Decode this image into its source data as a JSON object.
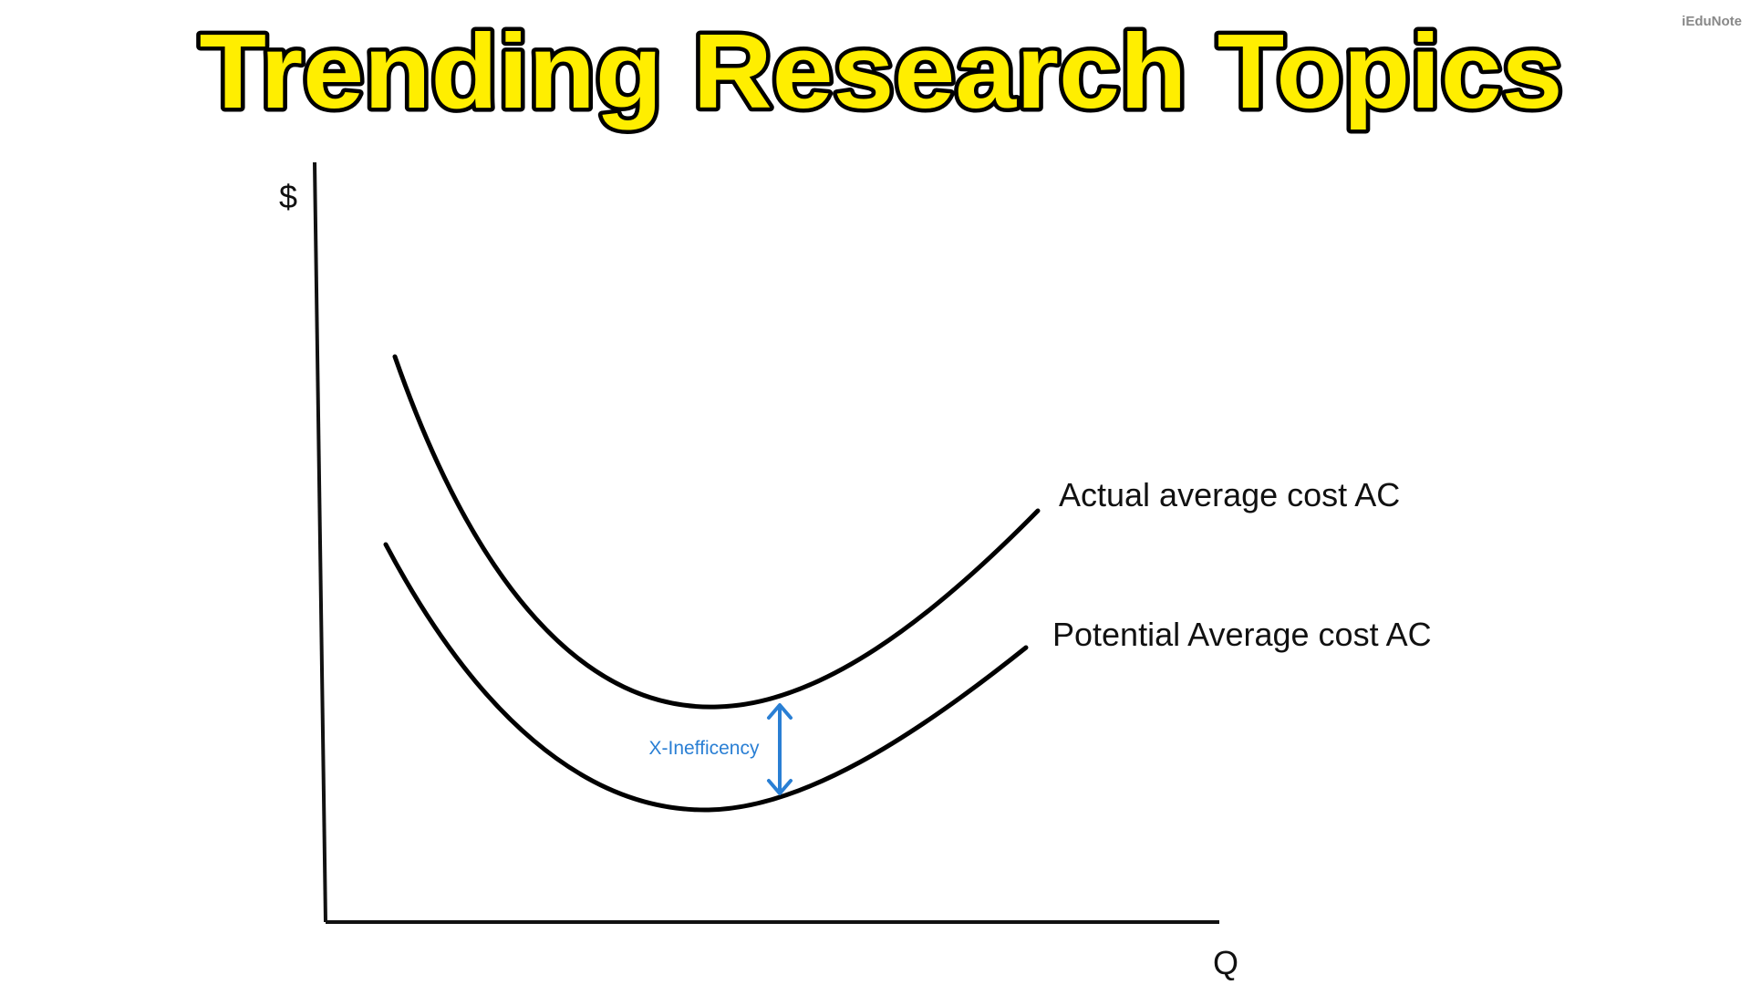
{
  "header": {
    "title": "Trending Research Topics",
    "watermark": "iEduNote"
  },
  "diagram": {
    "y_axis_label": "$",
    "x_axis_label": "Q",
    "curves": [
      {
        "label": "Actual average cost AC"
      },
      {
        "label": "Potential Average cost AC"
      }
    ],
    "annotation": "X-Inefficency"
  }
}
